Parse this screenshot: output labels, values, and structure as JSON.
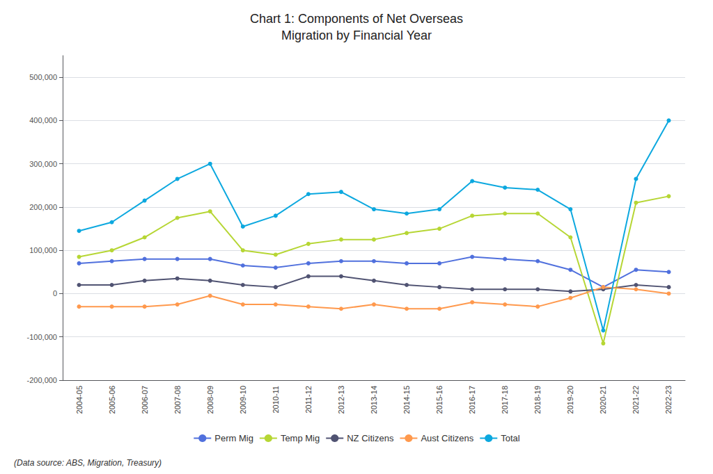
{
  "chart_data": {
    "type": "line",
    "title": "Chart 1: Components of Net Overseas\nMigration by Financial Year",
    "categories": [
      "2004-05",
      "2005-06",
      "2006-07",
      "2007-08",
      "2008-09",
      "2009-10",
      "2010-11",
      "2011-12",
      "2012-13",
      "2013-14",
      "2014-15",
      "2015-16",
      "2016-17",
      "2017-18",
      "2018-19",
      "2019-20",
      "2020-21",
      "2021-22",
      "2022-23"
    ],
    "series": [
      {
        "name": "Perm Mig",
        "values": [
          70000,
          75000,
          80000,
          80000,
          80000,
          65000,
          60000,
          70000,
          75000,
          75000,
          70000,
          70000,
          85000,
          80000,
          75000,
          55000,
          15000,
          55000,
          50000
        ]
      },
      {
        "name": "Temp Mig",
        "values": [
          85000,
          100000,
          130000,
          175000,
          190000,
          100000,
          90000,
          115000,
          125000,
          125000,
          140000,
          150000,
          180000,
          185000,
          185000,
          130000,
          -115000,
          210000,
          225000
        ]
      },
      {
        "name": "NZ Citizens",
        "values": [
          20000,
          20000,
          30000,
          35000,
          30000,
          20000,
          15000,
          40000,
          40000,
          30000,
          20000,
          15000,
          10000,
          10000,
          10000,
          5000,
          10000,
          20000,
          15000
        ]
      },
      {
        "name": "Aust Citizens",
        "values": [
          -30000,
          -30000,
          -30000,
          -25000,
          -5000,
          -25000,
          -25000,
          -30000,
          -35000,
          -25000,
          -35000,
          -35000,
          -20000,
          -25000,
          -30000,
          -10000,
          15000,
          10000,
          0
        ]
      },
      {
        "name": "Total",
        "values": [
          145000,
          165000,
          215000,
          265000,
          300000,
          155000,
          180000,
          230000,
          235000,
          195000,
          185000,
          195000,
          260000,
          245000,
          240000,
          195000,
          -85000,
          265000,
          400000
        ]
      }
    ],
    "ylim": [
      -200000,
      550000
    ],
    "yticks": [
      {
        "value": -200000,
        "label": "-200,000"
      },
      {
        "value": -100000,
        "label": "-100,000"
      },
      0,
      {
        "value": 100000,
        "label": "100,000"
      },
      {
        "value": 200000,
        "label": "200,000"
      },
      {
        "value": 300000,
        "label": "300,000"
      },
      {
        "value": 400000,
        "label": "400,000"
      },
      {
        "value": 500000,
        "label": "500,000"
      }
    ],
    "grid": true,
    "legend": "bottom",
    "marker": "circle",
    "annotations": [
      "(Data source: ABS, Migration, Treasury)"
    ]
  }
}
